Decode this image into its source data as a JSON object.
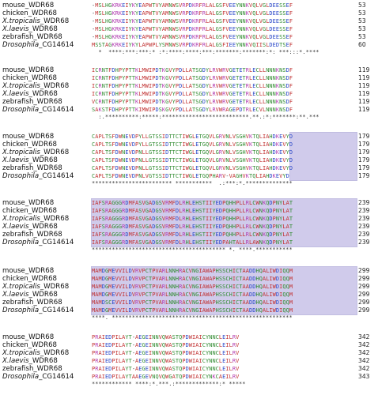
{
  "blocks": [
    {
      "rows": [
        {
          "genus": "",
          "name": "mouse_WDR68",
          "seq": "-MSLHGKRKEIYKYEAPWTVYAMNWSVRPDKRFRLALGSFVEEYNNKVQLVGLDEESSEF",
          "end": "53"
        },
        {
          "genus": "",
          "name": "chicken_WDR68",
          "seq": "-MSLHGKRKEIYKYEAPWTVYAMNWSVRPDKRFRLALGSFVEEYNNKVQLVGLDEESSEF",
          "end": "53"
        },
        {
          "genus": "X.tropicalis",
          "name": "_WDR68",
          "seq": "-MSLHGKRKEIYKYEAPWTVYAMNWSVRPDKRFRLALGSFVEEYNNKVQLVGLDEESSEF",
          "end": "53"
        },
        {
          "genus": "X.laevis",
          "name": "_WDR68",
          "seq": "-MSLHGKRKEIYKYEAPWTVYAMNWSVRPDKRFRLALGSFVEEYNNKVQLVGLDEESSEF",
          "end": "53"
        },
        {
          "genus": "",
          "name": "zebrafish_WDR68",
          "seq": "-MSLHGKRKEIYKYEAPWTVYAMNWSVRPDKRFRLALGSFVEEYNNKVQLVGLDEESSEF",
          "end": "53"
        },
        {
          "genus": "Drosophila",
          "name": "_CG14614",
          "seq": "MSSTAGKRKEIYKYLAPWPLYSMNWSVRPDKRFRLALGSFIEEYNNKVQIISLDEDTSEF",
          "end": "60"
        }
      ],
      "consensus": "  *  ****:***:***:* :*:****:****:***:*******:*******:*: ***:::*.****"
    },
    {
      "rows": [
        {
          "genus": "",
          "name": "mouse_WDR68",
          "seq": "ICRNTFDHPYPTTKLMWIPDTKGVYPDLLATSGDYLRVWRVGETETRLECLLNNNKNSDF",
          "end": "119"
        },
        {
          "genus": "",
          "name": "chicken_WDR68",
          "seq": "ICRNTFDHPYPTTKLMWIPDTKGVYPDLLATSGDYLRVWRVGETETRLECLLNNNKNSDF",
          "end": "119"
        },
        {
          "genus": "X.tropicalis",
          "name": "_WDR68",
          "seq": "ICRNTFDHPYPTTKLMWIPDTKGVYPDLLATSGDYLRVWRVGETETRLECLLNNNKNSDF",
          "end": "119"
        },
        {
          "genus": "X.laevis",
          "name": "_WDR68",
          "seq": "ICRNTFDHPYPTTKLMWIPDTKGVYPDLLATSGDYLRVWRVGETETRLECLLNNNKNSDF",
          "end": "119"
        },
        {
          "genus": "",
          "name": "zebrafish_WDR68",
          "seq": "VCRNTFDHPYPTTKLMWIPDTKGVYPDLLATSGDYLRVWRVGETETRLECLLNNNKNSDF",
          "end": "119"
        },
        {
          "genus": "Drosophila",
          "name": "_CG14614",
          "seq": "SAKSTFDHPYPTTKIMWIPDSKGVYPDLLATSGDYLRVWRAGEPDTRLECVLNNNKNSDF",
          "end": "119"
        }
      ],
      "consensus": "  :.**********:*****:**************************.**.:*:*******:**.***"
    },
    {
      "rows": [
        {
          "genus": "",
          "name": "mouse_WDR68",
          "seq": "CAPLTSFDWNEVDPYLLGTSSIDTTCTIWGLETGQVLGRVNLVSGHVKTQLIAHDKEVYD",
          "end": "179"
        },
        {
          "genus": "",
          "name": "chicken_WDR68",
          "seq": "CAPLTSFDWNEVDPYLLGTSSIDTTCTIWGLETGQVLGRVNLVSGHVKTQLIAHDKEVYD",
          "end": "179"
        },
        {
          "genus": "X.tropicalis",
          "name": "_WDR68",
          "seq": "CAPLTSFDWNEVDPNLLGTSSIDTTCTIWGLETGQVLGRVNLVSGHVKTQLIAHDKEVYD",
          "end": "179"
        },
        {
          "genus": "X.laevis",
          "name": "_WDR68",
          "seq": "CAPLTSFDWNEVDPNLLGTSSIDTTCTIWGLETGQVLGRVNLVSGHVKTQLIAHDKEVYD",
          "end": "179"
        },
        {
          "genus": "",
          "name": "zebrafish_WDR68",
          "seq": "CAPLTSFDWNEVDPNLLGTSSIDTTCTIWGLETGQVLGRVNLVSGHVKTQLIAHDKEVYD",
          "end": "179"
        },
        {
          "genus": "Drosophila",
          "name": "_CG14614",
          "seq": "CAPLTSFDWNEVDPNLVGTSSIDTTCTIWGLETGQPHARV-VAGHVKTQLIAHDKEVYD",
          "end": "179"
        }
      ],
      "consensus": "************************ ***********  .:***:*.**************"
    },
    {
      "rows": [
        {
          "genus": "",
          "name": "mouse_WDR68",
          "seq": "IAFSRAGGGRDMFASVGADGSVRMFDLRHLEHSTIIYEDPQHHPLLRLCWNKQDPNYLAT",
          "end": "239"
        },
        {
          "genus": "",
          "name": "chicken_WDR68",
          "seq": "IAFSRAGGGRDMFASVGADGSVRMFDLRHLEHSTIIYEDPQHHPLLRLCWNKQDPNYLAT",
          "end": "239"
        },
        {
          "genus": "X.tropicalis",
          "name": "_WDR68",
          "seq": "IAFSRAGGGRDMFASVGADGSVRMFDLRHLEHSTIIYEDPQHHPLLRLCWNKQDPNYLAT",
          "end": "239"
        },
        {
          "genus": "X.laevis",
          "name": "_WDR68",
          "seq": "IAFSRAGGGRDMFASVGADGSVRMFDLRHLEHSTIIYEDPQHHPLLRLCWNKQDPNYLAT",
          "end": "239"
        },
        {
          "genus": "",
          "name": "zebrafish_WDR68",
          "seq": "IAFSRAGGGRDMFASVGADGSVRMFDLRHLEHSTIIYEDPQHHPLLRLCWNKQDPNYLAT",
          "end": "239"
        },
        {
          "genus": "Drosophila",
          "name": "_CG14614",
          "seq": "IAFSRAGGGRDMFASVGADGSVRMFDLRHLEHSTIIYEDPAHTALLRLAWNKQDPNYLAT",
          "end": "239"
        }
      ],
      "consensus": "**************************************** *. ****.***********"
    },
    {
      "rows": [
        {
          "genus": "",
          "name": "mouse_WDR68",
          "seq": "MAMDGMEVVILDVRVPCTPVARLNNHRACVNGIAWAPHSSCHICTAADDHQALIWDIQQM",
          "end": "299"
        },
        {
          "genus": "",
          "name": "chicken_WDR68",
          "seq": "MAMDGMEVVILDVRVPCTPVARLNNHRACVNGIAWAPHSSCHICTAADDHQALIWDIQQM",
          "end": "299"
        },
        {
          "genus": "X.tropicalis",
          "name": "_WDR68",
          "seq": "MAMDGMEVVILDVRVPCTPVARLNNHRACVNGIAWAPHSSCHICTAADDHQALIWDIQQM",
          "end": "299"
        },
        {
          "genus": "X.laevis",
          "name": "_WDR68",
          "seq": "MAMDGMEVVILDVRVPCTPVARLNNHRACVNGIAWAPHSSCHICTAADDHQALIWDIQQM",
          "end": "299"
        },
        {
          "genus": "",
          "name": "zebrafish_WDR68",
          "seq": "MAMDSCEVVILDVRVPCTPVARLNNHRACVNGIAWAPHSSCHICTAADDHQALIWDIQQM",
          "end": "299"
        },
        {
          "genus": "Drosophila",
          "name": "_CG14614",
          "seq": "MAMDGMEVVILDVRVPCTPVARLNNHRACVNGIAWAPHSSCHICTAADDHQALIWDIQQM",
          "end": "299"
        }
      ],
      "consensus": "****. ******************************************************"
    },
    {
      "rows": [
        {
          "genus": "",
          "name": "mouse_WDR68",
          "seq": "PRAIEDPILAYT-AEGEINNVQWASTQPDWIAICYNNCLEILRV",
          "end": "342"
        },
        {
          "genus": "",
          "name": "chicken_WDR68",
          "seq": "PRAIEDPILAYT-AEGEINNVQWASTQPDWIAICYNNCLEILRV",
          "end": "342"
        },
        {
          "genus": "X.tropicalis",
          "name": "_WDR68",
          "seq": "PRAIEDPILAYT-AEGEINNVQWASTQPDWIAICYNNCLEILRV",
          "end": "342"
        },
        {
          "genus": "X.laevis",
          "name": "_WDR68",
          "seq": "PRAIEDPILAYT-AEGEINNVQWASTQPDWIAICYNNCLEILRV",
          "end": "342"
        },
        {
          "genus": "",
          "name": "zebrafish_WDR68",
          "seq": "PRAIEDPILAYT-AEGEINNVQWASTQPDWIAICYNNCLEILRV",
          "end": "342"
        },
        {
          "genus": "Drosophila",
          "name": "_CG14614",
          "seq": "PRAIEDPILAYTAAEGEVNQVQWGATQPDWIAICYNKCAEILRV",
          "end": "343"
        }
      ],
      "consensus": "************ ****:*.***.:*************:* *****"
    }
  ],
  "colors": {
    "highlight": "#c8c3e8",
    "acidic_basic": "#c03030",
    "polar_charged": "#2846c8",
    "basic": "#b03ab0",
    "polar": "#2f8a2f"
  }
}
